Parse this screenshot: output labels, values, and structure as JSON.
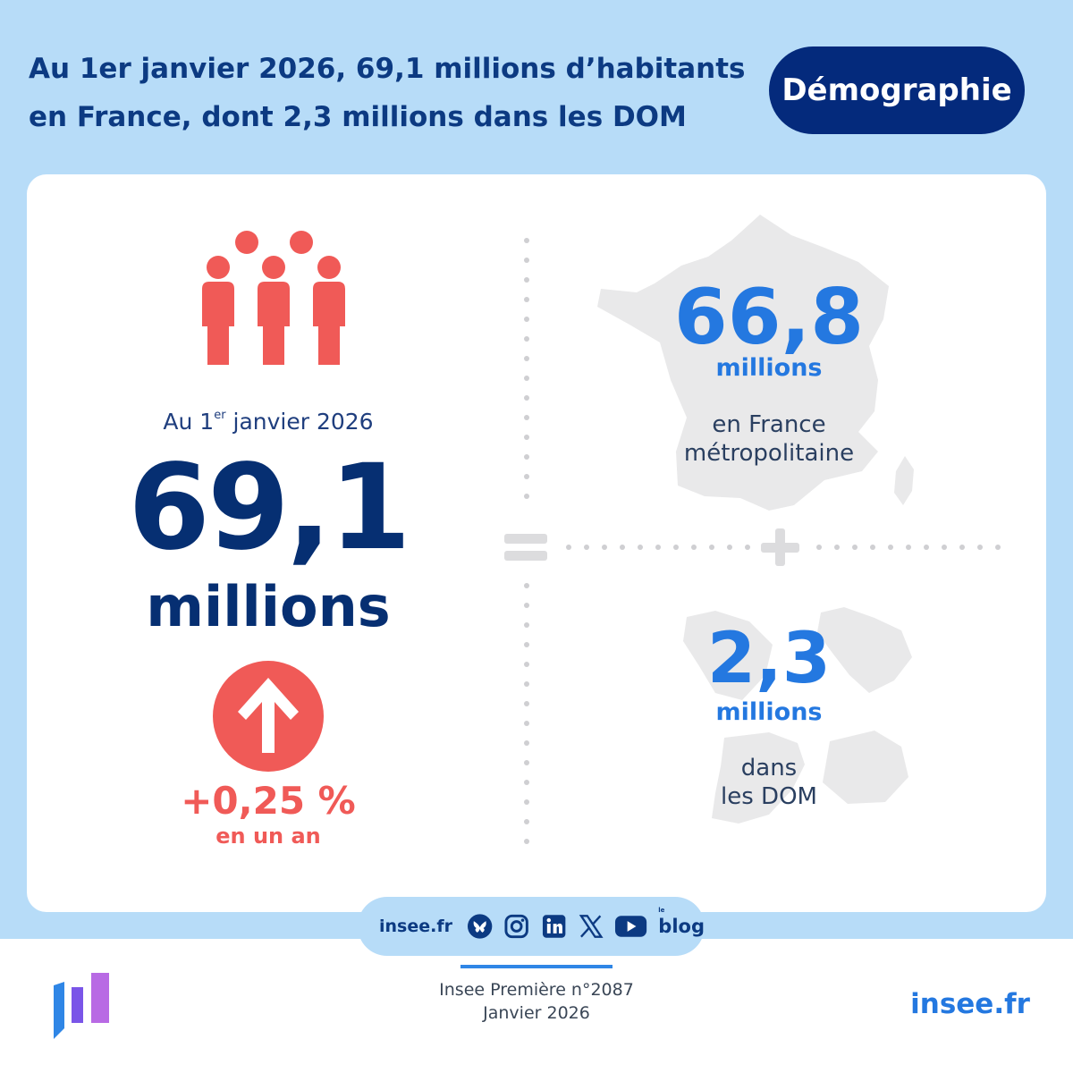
{
  "header": {
    "title_line1": "Au 1er janvier 2026, 69,1 millions d’habitants",
    "title_line2": "en France, dont 2,3 millions dans les DOM",
    "category": "Démographie"
  },
  "left": {
    "date_prefix": "Au 1",
    "date_sup": "er",
    "date_suffix": " janvier 2026",
    "total_value": "69,1",
    "total_unit": "millions",
    "growth_value": "+0,25 %",
    "growth_label": "en un an"
  },
  "right": {
    "metro": {
      "value": "66,8",
      "unit": "millions",
      "label_line1": "en France",
      "label_line2": "métropolitaine"
    },
    "dom": {
      "value": "2,3",
      "unit": "millions",
      "label_line1": "dans",
      "label_line2": "les DOM"
    }
  },
  "social": {
    "site_label": "insee.fr",
    "icons": [
      "bluesky-icon",
      "instagram-icon",
      "linkedin-icon",
      "x-icon",
      "youtube-icon",
      "blog-icon"
    ],
    "blog_small": "le",
    "blog_label": "blog"
  },
  "footer": {
    "publication": "Insee Première n°2087",
    "date": "Janvier 2026",
    "site": "insee.fr"
  },
  "colors": {
    "background_band": "#b7dcf8",
    "navy": "#062f72",
    "blue_accent": "#2478e0",
    "coral": "#f05a57",
    "map_gray": "#e9e9ea"
  }
}
